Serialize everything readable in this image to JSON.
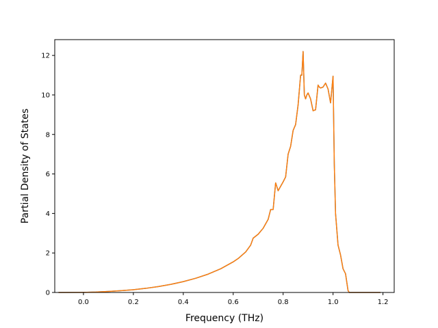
{
  "chart_data": {
    "type": "line",
    "title": "",
    "xlabel": "Frequency (THz)",
    "ylabel": "Partial Density of States",
    "xlim": [
      -0.115,
      1.245
    ],
    "ylim": [
      0,
      12.8
    ],
    "x_ticks": [
      0.0,
      0.2,
      0.4,
      0.6,
      0.8,
      1.0,
      1.2
    ],
    "x_tick_labels": [
      "0.0",
      "0.2",
      "0.4",
      "0.6",
      "0.8",
      "1.0",
      "1.2"
    ],
    "y_ticks": [
      0,
      2,
      4,
      6,
      8,
      10,
      12
    ],
    "y_tick_labels": [
      "0",
      "2",
      "4",
      "6",
      "8",
      "10",
      "12"
    ],
    "grid": false,
    "legend": "none",
    "series": [
      {
        "color": "#1f77b4",
        "x": [
          -0.1,
          0.0,
          0.05,
          0.1,
          0.15,
          0.2,
          0.25,
          0.3,
          0.35,
          0.4,
          0.45,
          0.5,
          0.55,
          0.6,
          0.62,
          0.65,
          0.67,
          0.68,
          0.69,
          0.7,
          0.72,
          0.74,
          0.75,
          0.76,
          0.77,
          0.78,
          0.8,
          0.81,
          0.82,
          0.83,
          0.84,
          0.85,
          0.86,
          0.87,
          0.875,
          0.88,
          0.885,
          0.89,
          0.895,
          0.9,
          0.91,
          0.92,
          0.93,
          0.94,
          0.945,
          0.95,
          0.96,
          0.97,
          0.98,
          0.99,
          1.0,
          1.005,
          1.01,
          1.02,
          1.03,
          1.04,
          1.05,
          1.06,
          1.065,
          1.07,
          1.08,
          1.1,
          1.19
        ],
        "y": [
          0,
          0.005,
          0.02,
          0.05,
          0.09,
          0.14,
          0.21,
          0.3,
          0.41,
          0.55,
          0.72,
          0.93,
          1.2,
          1.55,
          1.72,
          2.05,
          2.4,
          2.75,
          2.85,
          2.95,
          3.25,
          3.7,
          4.2,
          4.2,
          5.55,
          5.15,
          5.6,
          5.85,
          7.0,
          7.4,
          8.2,
          8.5,
          9.5,
          11.0,
          11.0,
          12.2,
          10.0,
          9.8,
          10.0,
          10.1,
          9.8,
          9.2,
          9.25,
          10.5,
          10.4,
          10.35,
          10.4,
          10.6,
          10.3,
          9.6,
          10.95,
          6.5,
          4.0,
          2.4,
          1.9,
          1.2,
          0.95,
          0.1,
          0.0,
          0.0,
          0.0,
          0.0,
          0.0
        ]
      },
      {
        "color": "#ff7f0e",
        "x": [
          -0.1,
          0.0,
          0.05,
          0.1,
          0.15,
          0.2,
          0.25,
          0.3,
          0.35,
          0.4,
          0.45,
          0.5,
          0.55,
          0.6,
          0.62,
          0.65,
          0.67,
          0.68,
          0.69,
          0.7,
          0.72,
          0.74,
          0.75,
          0.76,
          0.77,
          0.78,
          0.8,
          0.81,
          0.82,
          0.83,
          0.84,
          0.85,
          0.86,
          0.87,
          0.875,
          0.88,
          0.885,
          0.89,
          0.895,
          0.9,
          0.91,
          0.92,
          0.93,
          0.94,
          0.945,
          0.95,
          0.96,
          0.97,
          0.98,
          0.99,
          1.0,
          1.005,
          1.01,
          1.02,
          1.03,
          1.04,
          1.05,
          1.06,
          1.065,
          1.07,
          1.08,
          1.1,
          1.19
        ],
        "y": [
          0,
          0.005,
          0.02,
          0.05,
          0.09,
          0.14,
          0.21,
          0.3,
          0.41,
          0.55,
          0.72,
          0.93,
          1.2,
          1.55,
          1.72,
          2.05,
          2.4,
          2.75,
          2.85,
          2.95,
          3.25,
          3.7,
          4.2,
          4.2,
          5.55,
          5.15,
          5.6,
          5.85,
          7.0,
          7.4,
          8.2,
          8.5,
          9.5,
          11.0,
          11.0,
          12.2,
          10.0,
          9.8,
          10.0,
          10.1,
          9.8,
          9.2,
          9.25,
          10.5,
          10.4,
          10.35,
          10.4,
          10.6,
          10.3,
          9.6,
          10.95,
          6.5,
          4.0,
          2.4,
          1.9,
          1.2,
          0.95,
          0.1,
          0.0,
          0.0,
          0.0,
          0.0,
          0.0
        ]
      }
    ]
  }
}
